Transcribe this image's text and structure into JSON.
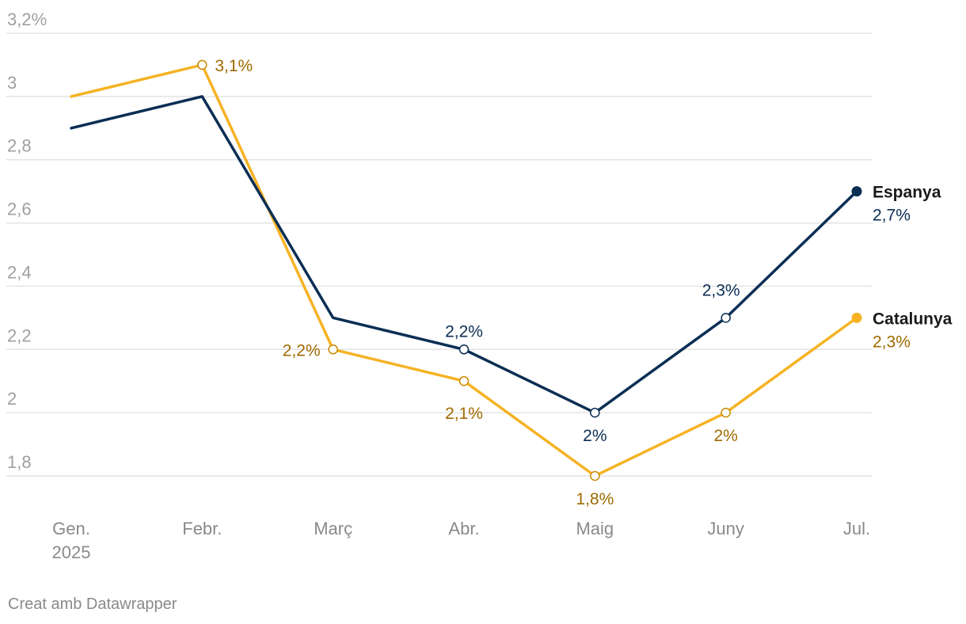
{
  "chart_data": {
    "type": "line",
    "categories": [
      "Gen.",
      "Febr.",
      "Març",
      "Abr.",
      "Maig",
      "Juny",
      "Jul."
    ],
    "category_sublabels": [
      "2025",
      "",
      "",
      "",
      "",
      "",
      ""
    ],
    "y_ticks": [
      "1,8",
      "2",
      "2,2",
      "2,4",
      "2,6",
      "2,8",
      "3",
      "3,2%"
    ],
    "y_tick_values": [
      1.8,
      2.0,
      2.2,
      2.4,
      2.6,
      2.8,
      3.0,
      3.2
    ],
    "ylim": [
      1.8,
      3.2
    ],
    "grid": true,
    "series": [
      {
        "name": "Espanya",
        "color": "#0b2e54",
        "label_color": "#0b2e54",
        "values": [
          2.9,
          3.0,
          2.3,
          2.2,
          2.0,
          2.3,
          2.7
        ],
        "point_labels": [
          "",
          "",
          "",
          "2,2%",
          "2%",
          "2,3%",
          "2,7%"
        ]
      },
      {
        "name": "Catalunya",
        "color": "#f5b324",
        "label_color": "#a06a00",
        "values": [
          3.0,
          3.1,
          2.2,
          2.1,
          1.8,
          2.0,
          2.3
        ],
        "point_labels": [
          "",
          "3,1%",
          "2,2%",
          "2,1%",
          "1,8%",
          "2%",
          "2,3%"
        ]
      }
    ]
  },
  "footer": {
    "credit": "Creat amb Datawrapper"
  }
}
